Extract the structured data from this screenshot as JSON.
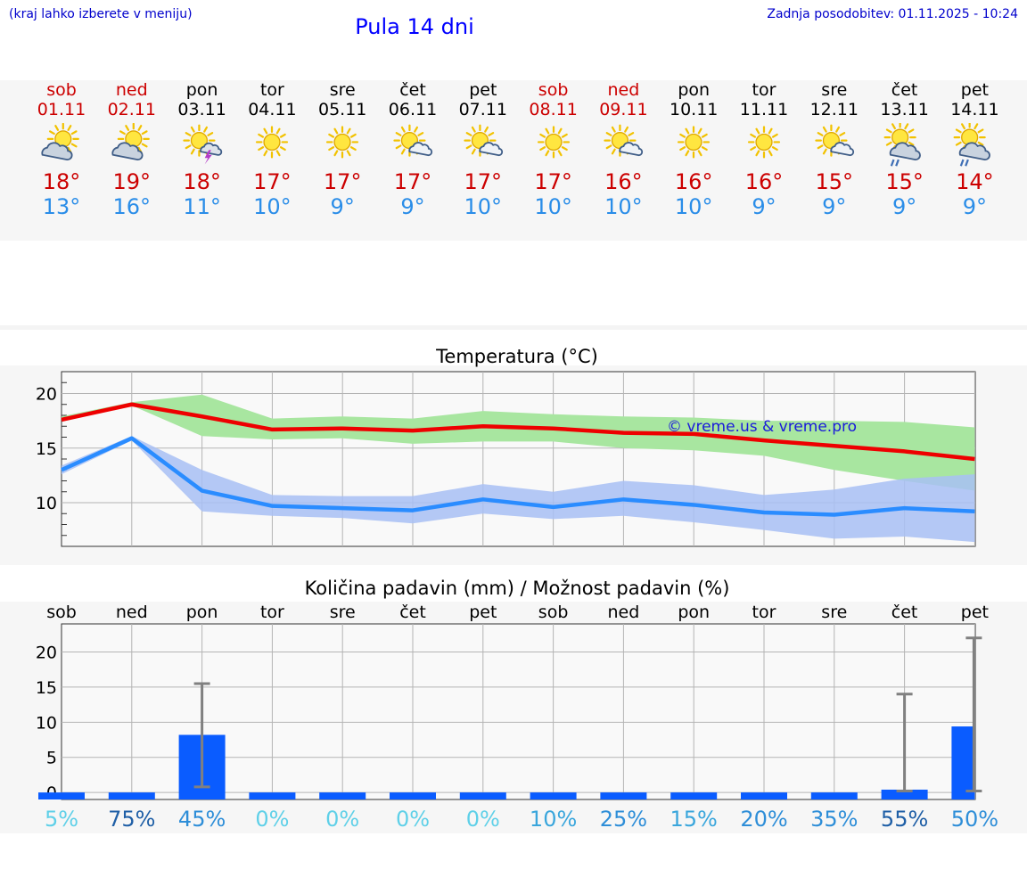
{
  "header": {
    "hint": "(kraj lahko izberete v meniju)",
    "title": "Pula 14 dni",
    "updated": "Zadnja posodobitev: 01.11.2025 - 10:24"
  },
  "days": [
    {
      "name": "sob",
      "date": "01.11",
      "weekend": true,
      "icon": "sun-cloud-icon",
      "tmax": "18°",
      "tmin": "13°"
    },
    {
      "name": "ned",
      "date": "02.11",
      "weekend": true,
      "icon": "sun-cloud-icon",
      "tmax": "19°",
      "tmin": "16°"
    },
    {
      "name": "pon",
      "date": "03.11",
      "weekend": false,
      "icon": "sun-storm-icon",
      "tmax": "18°",
      "tmin": "11°"
    },
    {
      "name": "tor",
      "date": "04.11",
      "weekend": false,
      "icon": "sun-icon",
      "tmax": "17°",
      "tmin": "10°"
    },
    {
      "name": "sre",
      "date": "05.11",
      "weekend": false,
      "icon": "sun-icon",
      "tmax": "17°",
      "tmin": "9°"
    },
    {
      "name": "čet",
      "date": "06.11",
      "weekend": false,
      "icon": "sun-small-cloud-icon",
      "tmax": "17°",
      "tmin": "9°"
    },
    {
      "name": "pet",
      "date": "07.11",
      "weekend": false,
      "icon": "sun-small-cloud-icon",
      "tmax": "17°",
      "tmin": "10°"
    },
    {
      "name": "sob",
      "date": "08.11",
      "weekend": true,
      "icon": "sun-icon",
      "tmax": "17°",
      "tmin": "10°"
    },
    {
      "name": "ned",
      "date": "09.11",
      "weekend": true,
      "icon": "sun-small-cloud-icon",
      "tmax": "16°",
      "tmin": "10°"
    },
    {
      "name": "pon",
      "date": "10.11",
      "weekend": false,
      "icon": "sun-icon",
      "tmax": "16°",
      "tmin": "10°"
    },
    {
      "name": "tor",
      "date": "11.11",
      "weekend": false,
      "icon": "sun-icon",
      "tmax": "16°",
      "tmin": "9°"
    },
    {
      "name": "sre",
      "date": "12.11",
      "weekend": false,
      "icon": "sun-small-cloud-icon",
      "tmax": "15°",
      "tmin": "9°"
    },
    {
      "name": "čet",
      "date": "13.11",
      "weekend": false,
      "icon": "sun-cloud-rain-icon",
      "tmax": "15°",
      "tmin": "9°"
    },
    {
      "name": "pet",
      "date": "14.11",
      "weekend": false,
      "icon": "sun-cloud-rain-icon",
      "tmax": "14°",
      "tmin": "9°"
    }
  ],
  "colors": {
    "max_line": "#ee0000",
    "max_band": "#a8e6a0",
    "min_line": "#2a8cff",
    "min_band": "#a8c0f4",
    "bar": "#0a5cff",
    "err": "#808080"
  },
  "chart_data": [
    {
      "type": "line",
      "title": "Temperatura (°C)",
      "watermark": "© vreme.us & vreme.pro",
      "x": [
        0,
        1,
        2,
        3,
        4,
        5,
        6,
        7,
        8,
        9,
        10,
        11,
        12,
        13
      ],
      "ylim": [
        6,
        22
      ],
      "yticks": [
        10,
        15,
        20
      ],
      "series": [
        {
          "name": "max",
          "values": [
            17.6,
            19.0,
            17.9,
            16.7,
            16.8,
            16.6,
            17.0,
            16.8,
            16.4,
            16.3,
            15.7,
            15.2,
            14.7,
            14.0
          ],
          "band_low": [
            17.5,
            18.9,
            16.1,
            15.8,
            15.9,
            15.4,
            15.6,
            15.6,
            15.0,
            14.8,
            14.3,
            13.0,
            12.0,
            11.1
          ],
          "band_high": [
            17.9,
            19.2,
            19.9,
            17.7,
            17.9,
            17.7,
            18.4,
            18.1,
            17.9,
            17.8,
            17.5,
            17.5,
            17.4,
            16.9
          ]
        },
        {
          "name": "min",
          "values": [
            13.0,
            15.9,
            11.1,
            9.7,
            9.5,
            9.3,
            10.3,
            9.6,
            10.3,
            9.8,
            9.1,
            8.9,
            9.5,
            9.2
          ],
          "band_low": [
            12.6,
            15.7,
            9.2,
            8.8,
            8.6,
            8.1,
            9.0,
            8.5,
            8.8,
            8.2,
            7.5,
            6.7,
            6.9,
            6.4
          ],
          "band_high": [
            13.4,
            16.1,
            13.0,
            10.7,
            10.6,
            10.6,
            11.7,
            11.0,
            12.0,
            11.6,
            10.7,
            11.2,
            12.2,
            12.6
          ]
        }
      ]
    },
    {
      "type": "bar",
      "title": "Količina padavin (mm) / Možnost padavin (%)",
      "categories": [
        "sob",
        "ned",
        "pon",
        "tor",
        "sre",
        "čet",
        "pet",
        "sob",
        "ned",
        "pon",
        "tor",
        "sre",
        "čet",
        "pet"
      ],
      "values": [
        0,
        0,
        8.2,
        0,
        0,
        0,
        0,
        0,
        0,
        0,
        0,
        0,
        0.4,
        9.4
      ],
      "error_high": [
        null,
        null,
        15.5,
        null,
        null,
        null,
        null,
        null,
        null,
        null,
        null,
        null,
        14.0,
        22.0
      ],
      "error_low": [
        null,
        null,
        0.8,
        null,
        null,
        null,
        null,
        null,
        null,
        null,
        null,
        null,
        0.2,
        0.2
      ],
      "ylim": [
        -1,
        24
      ],
      "yticks": [
        0,
        5,
        10,
        15,
        20
      ],
      "probabilities": [
        "5%",
        "75%",
        "45%",
        "0%",
        "0%",
        "0%",
        "0%",
        "10%",
        "25%",
        "15%",
        "20%",
        "35%",
        "55%",
        "50%"
      ],
      "prob_colors": [
        "#5fd0e8",
        "#1f5fa6",
        "#2e8ed8",
        "#5fd0e8",
        "#5fd0e8",
        "#5fd0e8",
        "#5fd0e8",
        "#3aa6dc",
        "#2e8ed8",
        "#3aa6dc",
        "#2e8ed8",
        "#2e8ed8",
        "#1f5fa6",
        "#2e8ed8"
      ]
    }
  ]
}
